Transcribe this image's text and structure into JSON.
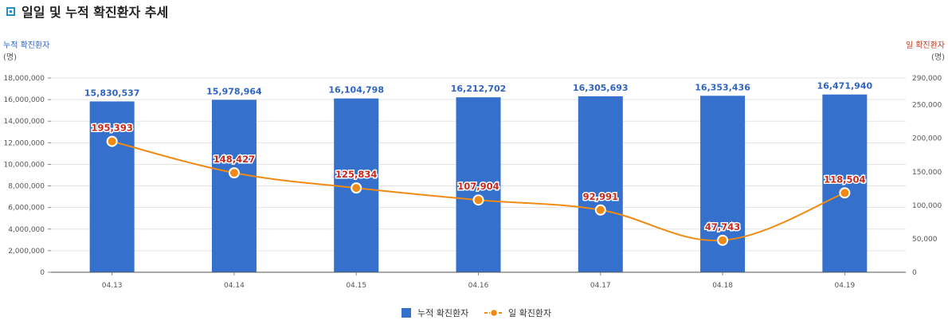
{
  "title": "일일 및 누적 확진환자 추세",
  "colors": {
    "bar": "#3470cc",
    "line": "#f08a12",
    "line_label": "#c8281e",
    "bar_label": "#2f64c2",
    "left_axis_title": "#2f64c2",
    "right_axis_title": "#c8381e",
    "title_icon": "#2a8fbd"
  },
  "chart_data": {
    "type": "bar",
    "title": "일일 및 누적 확진환자 추세",
    "categories": [
      "04.13",
      "04.14",
      "04.15",
      "04.16",
      "04.17",
      "04.18",
      "04.19"
    ],
    "series": [
      {
        "name": "누적 확진환자",
        "type": "bar",
        "axis": "left",
        "values": [
          15830537,
          15978964,
          16104798,
          16212702,
          16305693,
          16353436,
          16471940
        ],
        "labels": [
          "15,830,537",
          "15,978,964",
          "16,104,798",
          "16,212,702",
          "16,305,693",
          "16,353,436",
          "16,471,940"
        ]
      },
      {
        "name": "일 확진환자",
        "type": "line",
        "axis": "right",
        "values": [
          195393,
          148427,
          125834,
          107904,
          92991,
          47743,
          118504
        ],
        "labels": [
          "195,393",
          "148,427",
          "125,834",
          "107,904",
          "92,991",
          "47,743",
          "118,504"
        ]
      }
    ],
    "y_left": {
      "title": "누적 확진환자",
      "unit": "(명)",
      "ylim": [
        0,
        18000000
      ],
      "ticks": [
        0,
        2000000,
        4000000,
        6000000,
        8000000,
        10000000,
        12000000,
        14000000,
        16000000,
        18000000
      ],
      "tick_labels": [
        "0",
        "2,000,000",
        "4,000,000",
        "6,000,000",
        "8,000,000",
        "10,000,000",
        "12,000,000",
        "14,000,000",
        "16,000,000",
        "18,000,000"
      ]
    },
    "y_right": {
      "title": "일 확진환자",
      "unit": "(명)",
      "ylim": [
        0,
        290000
      ],
      "ticks": [
        0,
        50000,
        100000,
        150000,
        200000,
        250000,
        290000
      ],
      "tick_labels": [
        "0",
        "50,000",
        "100,000",
        "150,000",
        "200,000",
        "250,000",
        "290,000"
      ]
    },
    "grid": true,
    "legend": {
      "position": "bottom-center",
      "entries": [
        "누적 확진환자",
        "일 확진환자"
      ]
    }
  }
}
